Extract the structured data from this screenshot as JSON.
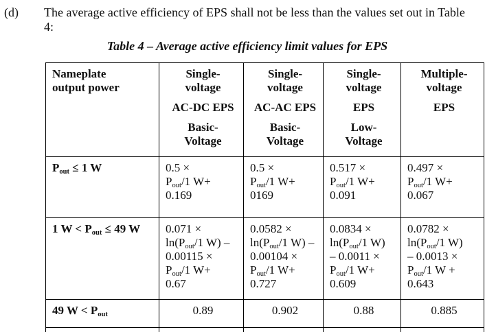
{
  "document": {
    "item_label": "(d)",
    "paragraph": "The average active efficiency of EPS shall not be less than the values set out in Table\n4:",
    "table_caption": "Table 4 – Average active efficiency limit values for EPS"
  },
  "table": {
    "header": {
      "col1": "Nameplate\noutput power",
      "col2": {
        "g1": "Single-\nvoltage",
        "g2": "AC-DC EPS",
        "g3": "Basic-\nVoltage"
      },
      "col3": {
        "g1": "Single-\nvoltage",
        "g2": "AC-AC EPS",
        "g3": "Basic-\nVoltage"
      },
      "col4": {
        "g1": "Single-\nvoltage",
        "g2": "EPS",
        "g3": "Low-\nVoltage"
      },
      "col5": {
        "g1": "Multiple-\nvoltage",
        "g2": "EPS"
      }
    },
    "rows": [
      {
        "label": "P{out} ≤ 1 W",
        "c2": "0.5 ×\nP{out}/1 W+\n0.169",
        "c3": "0.5 ×\nP{out}/1 W+\n0169",
        "c4": "0.517 ×\nP{out}/1 W+\n0.091",
        "c5": "0.497 ×\nP{out}/1 W+\n0.067"
      },
      {
        "label": "1 W < P{out} ≤ 49 W",
        "c2": "0.071 ×\nln(P{out}/1 W) –\n0.00115 ×\nP{out}/1 W+\n0.67",
        "c3": "0.0582 ×\nln(P{out}/1 W) –\n0.00104 ×\nP{out}/1 W+\n0.727",
        "c4": "0.0834 ×\nln(P{out}/1 W)\n– 0.0011 ×\nP{out}/1 W+\n0.609",
        "c5": "0.0782 ×\nln(P{out}/1 W)\n– 0.0013 ×\nP{out}/1 W +\n0.643"
      },
      {
        "label": "49 W < P{out}",
        "c2": "0.89",
        "c3": "0.902",
        "c4": "0.88",
        "c5": "0.885"
      }
    ]
  }
}
